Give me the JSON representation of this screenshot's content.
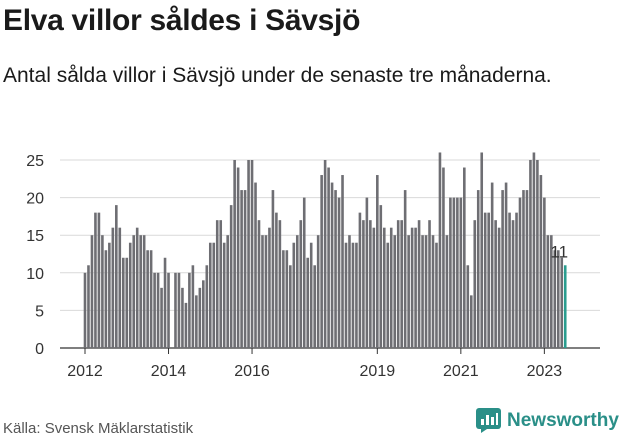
{
  "title": "Elva villor såldes i Sävsjö",
  "subtitle": "Antal sålda villor i Sävsjö under de senaste tre månaderna.",
  "source": "Källa: Svensk Mäklarstatistik",
  "brand": {
    "name": "Newsworthy",
    "icon": "newsworthy-logo-icon",
    "color": "#2a8f88"
  },
  "chart_data": {
    "type": "bar",
    "x_start": "2012-01",
    "interval": "month",
    "values": [
      10,
      11,
      15,
      18,
      18,
      15,
      13,
      14,
      16,
      19,
      16,
      12,
      12,
      14,
      15,
      16,
      15,
      15,
      13,
      13,
      10,
      10,
      8,
      12,
      10,
      0,
      10,
      10,
      8,
      6,
      10,
      11,
      7,
      8,
      9,
      11,
      14,
      14,
      17,
      17,
      14,
      15,
      19,
      25,
      24,
      21,
      21,
      25,
      25,
      22,
      17,
      15,
      15,
      16,
      21,
      18,
      17,
      13,
      13,
      11,
      14,
      15,
      17,
      20,
      12,
      14,
      11,
      15,
      23,
      25,
      24,
      22,
      21,
      20,
      23,
      14,
      15,
      14,
      14,
      18,
      17,
      20,
      17,
      16,
      23,
      19,
      16,
      14,
      16,
      15,
      17,
      17,
      21,
      15,
      16,
      16,
      17,
      15,
      15,
      17,
      15,
      14,
      26,
      24,
      15,
      20,
      20,
      20,
      20,
      24,
      11,
      7,
      17,
      21,
      26,
      18,
      18,
      22,
      17,
      16,
      21,
      22,
      18,
      17,
      18,
      20,
      21,
      21,
      25,
      26,
      25,
      23,
      20,
      15,
      15,
      13,
      13,
      12,
      11
    ],
    "highlight": {
      "index": 138,
      "label": "11",
      "color": "#2a9d8f"
    },
    "bar_color": "#6e6e73",
    "x_ticks": [
      {
        "index": 0,
        "label": "2012"
      },
      {
        "index": 24,
        "label": "2014"
      },
      {
        "index": 48,
        "label": "2016"
      },
      {
        "index": 84,
        "label": "2019"
      },
      {
        "index": 108,
        "label": "2021"
      },
      {
        "index": 132,
        "label": "2023"
      }
    ],
    "y_ticks": [
      0,
      5,
      10,
      15,
      20,
      25
    ],
    "ylim": [
      0,
      27
    ],
    "grid": true,
    "xlabel": "",
    "ylabel": ""
  }
}
